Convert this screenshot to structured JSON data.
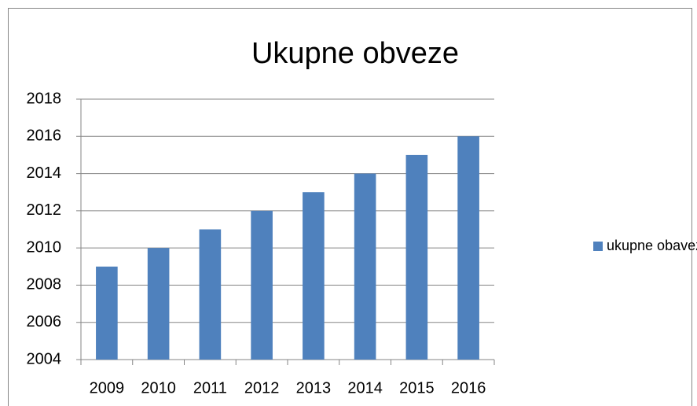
{
  "chart_data": {
    "type": "bar",
    "title": "Ukupne obveze",
    "categories": [
      "2009",
      "2010",
      "2011",
      "2012",
      "2013",
      "2014",
      "2015",
      "2016"
    ],
    "series": [
      {
        "name": "ukupne obaveze",
        "color": "#4f81bd",
        "values": [
          2009,
          2010,
          2011,
          2012,
          2013,
          2014,
          2015,
          2016
        ]
      }
    ],
    "ylim": [
      2004,
      2018
    ],
    "yticks": [
      2004,
      2006,
      2008,
      2010,
      2012,
      2014,
      2016,
      2018
    ],
    "grid": true,
    "legend": "right"
  }
}
